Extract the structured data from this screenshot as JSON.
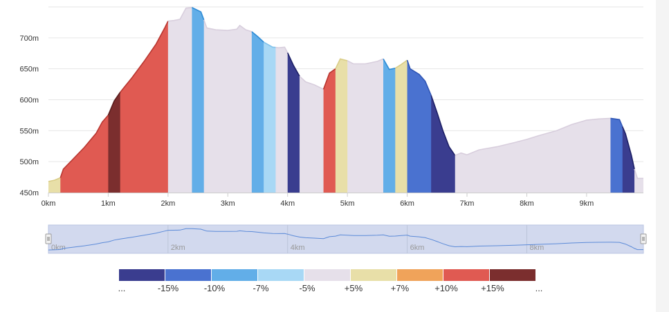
{
  "chart_data": {
    "type": "area",
    "title": "",
    "xlabel": "",
    "ylabel": "",
    "xlim": [
      0,
      9.95
    ],
    "ylim": [
      450,
      750
    ],
    "x_ticks": [
      0,
      1,
      2,
      3,
      4,
      5,
      6,
      7,
      8,
      9
    ],
    "x_tick_labels": [
      "0km",
      "1km",
      "2km",
      "3km",
      "4km",
      "5km",
      "6km",
      "7km",
      "8km",
      "9km"
    ],
    "y_ticks": [
      450,
      500,
      550,
      600,
      650,
      700
    ],
    "y_tick_labels": [
      "450m",
      "500m",
      "550m",
      "600m",
      "650m",
      "700m"
    ],
    "grid": true,
    "profile": [
      [
        0,
        468
      ],
      [
        0.1,
        470
      ],
      [
        0.2,
        474
      ],
      [
        0.25,
        488
      ],
      [
        0.4,
        503
      ],
      [
        0.6,
        523
      ],
      [
        0.8,
        546
      ],
      [
        0.9,
        564
      ],
      [
        1.0,
        575
      ],
      [
        1.1,
        598
      ],
      [
        1.2,
        612
      ],
      [
        1.4,
        636
      ],
      [
        1.6,
        662
      ],
      [
        1.8,
        690
      ],
      [
        1.95,
        717
      ],
      [
        2.0,
        727
      ],
      [
        2.1,
        728
      ],
      [
        2.2,
        730
      ],
      [
        2.3,
        748
      ],
      [
        2.4,
        749
      ],
      [
        2.55,
        742
      ],
      [
        2.65,
        716
      ],
      [
        2.8,
        713
      ],
      [
        3.0,
        712
      ],
      [
        3.15,
        714
      ],
      [
        3.2,
        720
      ],
      [
        3.3,
        713
      ],
      [
        3.4,
        710
      ],
      [
        3.5,
        702
      ],
      [
        3.6,
        693
      ],
      [
        3.75,
        685
      ],
      [
        3.85,
        684
      ],
      [
        3.95,
        685
      ],
      [
        4.0,
        676
      ],
      [
        4.1,
        655
      ],
      [
        4.2,
        638
      ],
      [
        4.3,
        629
      ],
      [
        4.45,
        624
      ],
      [
        4.6,
        617
      ],
      [
        4.7,
        643
      ],
      [
        4.8,
        650
      ],
      [
        4.88,
        666
      ],
      [
        5.0,
        663
      ],
      [
        5.1,
        658
      ],
      [
        5.3,
        658
      ],
      [
        5.5,
        662
      ],
      [
        5.6,
        666
      ],
      [
        5.7,
        649
      ],
      [
        5.8,
        651
      ],
      [
        5.9,
        657
      ],
      [
        6.0,
        664
      ],
      [
        6.05,
        650
      ],
      [
        6.2,
        641
      ],
      [
        6.3,
        630
      ],
      [
        6.4,
        607
      ],
      [
        6.5,
        579
      ],
      [
        6.6,
        549
      ],
      [
        6.7,
        524
      ],
      [
        6.8,
        510
      ],
      [
        6.9,
        514
      ],
      [
        7.0,
        511
      ],
      [
        7.2,
        519
      ],
      [
        7.5,
        524
      ],
      [
        7.8,
        531
      ],
      [
        8.0,
        536
      ],
      [
        8.2,
        542
      ],
      [
        8.5,
        550
      ],
      [
        8.75,
        560
      ],
      [
        9.0,
        567
      ],
      [
        9.2,
        569
      ],
      [
        9.4,
        570
      ],
      [
        9.55,
        568
      ],
      [
        9.65,
        545
      ],
      [
        9.75,
        510
      ],
      [
        9.8,
        488
      ],
      [
        9.85,
        473
      ],
      [
        9.95,
        473
      ]
    ],
    "grade_segments": [
      {
        "from": 0,
        "to": 0.2,
        "color": "#e8dfa8"
      },
      {
        "from": 0.2,
        "to": 1.0,
        "color": "#e05a52"
      },
      {
        "from": 1.0,
        "to": 1.2,
        "color": "#7b2e2e"
      },
      {
        "from": 1.2,
        "to": 2.0,
        "color": "#e05a52"
      },
      {
        "from": 2.0,
        "to": 2.4,
        "color": "#e6e0ea"
      },
      {
        "from": 2.4,
        "to": 2.6,
        "color": "#62aee8"
      },
      {
        "from": 2.6,
        "to": 3.4,
        "color": "#e6e0ea"
      },
      {
        "from": 3.4,
        "to": 3.6,
        "color": "#62aee8"
      },
      {
        "from": 3.6,
        "to": 3.8,
        "color": "#a8d8f5"
      },
      {
        "from": 3.8,
        "to": 4.0,
        "color": "#e6e0ea"
      },
      {
        "from": 4.0,
        "to": 4.2,
        "color": "#3a3d8f"
      },
      {
        "from": 4.2,
        "to": 4.6,
        "color": "#e6e0ea"
      },
      {
        "from": 4.6,
        "to": 4.8,
        "color": "#e05a52"
      },
      {
        "from": 4.8,
        "to": 5.0,
        "color": "#e8dfa8"
      },
      {
        "from": 5.0,
        "to": 5.6,
        "color": "#e6e0ea"
      },
      {
        "from": 5.6,
        "to": 5.8,
        "color": "#62aee8"
      },
      {
        "from": 5.8,
        "to": 6.0,
        "color": "#e8dfa8"
      },
      {
        "from": 6.0,
        "to": 6.4,
        "color": "#4a72d0"
      },
      {
        "from": 6.4,
        "to": 6.8,
        "color": "#3a3d8f"
      },
      {
        "from": 6.8,
        "to": 9.4,
        "color": "#e6e0ea"
      },
      {
        "from": 9.4,
        "to": 9.6,
        "color": "#4a72d0"
      },
      {
        "from": 9.6,
        "to": 9.8,
        "color": "#3a3d8f"
      },
      {
        "from": 9.8,
        "to": 9.95,
        "color": "#e6e0ea"
      }
    ],
    "navigator": {
      "tick_labels": [
        "0km",
        "2km",
        "4km",
        "6km",
        "8km"
      ],
      "tick_values": [
        0,
        2,
        4,
        6,
        8
      ]
    },
    "legend": {
      "items": [
        {
          "color": "#3a3d8f"
        },
        {
          "color": "#4a72d0"
        },
        {
          "color": "#62aee8"
        },
        {
          "color": "#a8d8f5"
        },
        {
          "color": "#e6e0ea"
        },
        {
          "color": "#e8dfa8"
        },
        {
          "color": "#f0a35a"
        },
        {
          "color": "#e05a52"
        },
        {
          "color": "#7b2e2e"
        }
      ],
      "labels": [
        "...",
        "-15%",
        "-10%",
        "-7%",
        "-5%",
        "+5%",
        "+7%",
        "+10%",
        "+15%",
        "..."
      ]
    },
    "colors": {
      "grid": "#e6e6e6",
      "axis": "#cccccc",
      "tick_text": "#333333",
      "navigator_fill": "#d2d9ee",
      "navigator_line": "#5b8ad8",
      "navigator_label": "#999999"
    }
  }
}
